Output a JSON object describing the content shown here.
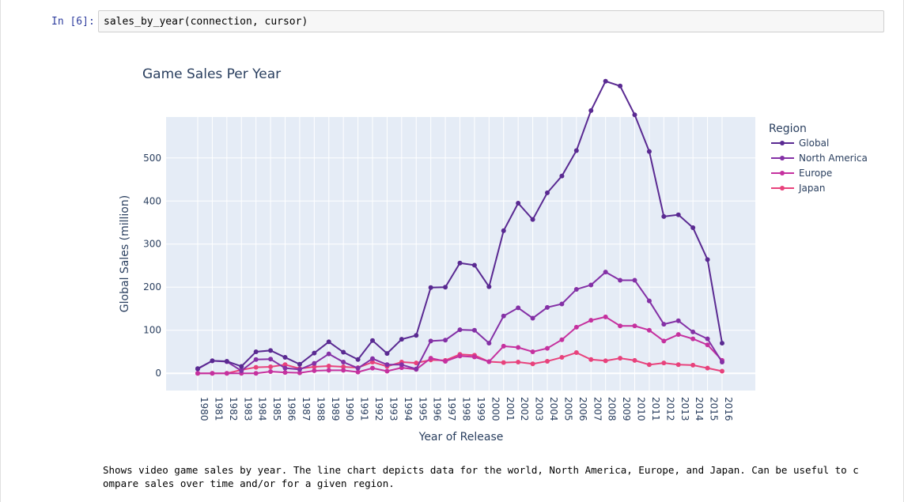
{
  "cell": {
    "prompt": "In [6]:",
    "code": "sales_by_year(connection, cursor)"
  },
  "output": {
    "line1": "Shows video game sales by year. The line chart depicts data for the world, North America, Europe, and Japan. Can be useful to c",
    "line2": "ompare sales over time and/or for a given region."
  },
  "chart_data": {
    "type": "line",
    "title": "Game Sales Per Year",
    "xlabel": "Year of Release",
    "ylabel": "Global Sales (million)",
    "legend_title": "Region",
    "legend_position": "top-right",
    "grid": true,
    "background": "#e5ecf6",
    "ylim": [
      -40,
      595
    ],
    "yticks": [
      0,
      100,
      200,
      300,
      400,
      500
    ],
    "x": [
      1980,
      1981,
      1982,
      1983,
      1984,
      1985,
      1986,
      1987,
      1988,
      1989,
      1990,
      1991,
      1992,
      1993,
      1994,
      1995,
      1996,
      1997,
      1998,
      1999,
      2000,
      2001,
      2002,
      2003,
      2004,
      2005,
      2006,
      2007,
      2008,
      2009,
      2010,
      2011,
      2012,
      2013,
      2014,
      2015,
      2016
    ],
    "series": [
      {
        "name": "Global",
        "color": "#5a2a92",
        "values": [
          11,
          29,
          28,
          16,
          50,
          53,
          37,
          21,
          47,
          73,
          49,
          32,
          76,
          46,
          79,
          88,
          199,
          200,
          256,
          251,
          201,
          331,
          395,
          357,
          419,
          458,
          517,
          610,
          678,
          667,
          600,
          515,
          364,
          368,
          338,
          264,
          70
        ]
      },
      {
        "name": "North America",
        "color": "#8431a6",
        "values": [
          10,
          29,
          27,
          6,
          32,
          33,
          12,
          9,
          23,
          45,
          26,
          12,
          34,
          20,
          20,
          10,
          75,
          77,
          101,
          100,
          70,
          133,
          152,
          128,
          153,
          161,
          195,
          205,
          235,
          216,
          216,
          168,
          114,
          122,
          96,
          80,
          26
        ]
      },
      {
        "name": "Europe",
        "color": "#c5319f",
        "values": [
          0,
          0,
          0,
          0,
          0,
          4,
          2,
          1,
          6,
          7,
          7,
          3,
          12,
          5,
          13,
          9,
          35,
          28,
          40,
          38,
          27,
          63,
          60,
          50,
          58,
          78,
          107,
          123,
          131,
          110,
          110,
          100,
          75,
          90,
          80,
          66,
          30
        ]
      },
      {
        "name": "Japan",
        "color": "#e8427c",
        "values": [
          0,
          0,
          0,
          8,
          14,
          15,
          20,
          11,
          15,
          17,
          15,
          13,
          26,
          16,
          26,
          24,
          31,
          30,
          44,
          42,
          27,
          25,
          26,
          22,
          28,
          37,
          48,
          32,
          29,
          35,
          30,
          20,
          24,
          20,
          19,
          12,
          5
        ]
      }
    ]
  }
}
